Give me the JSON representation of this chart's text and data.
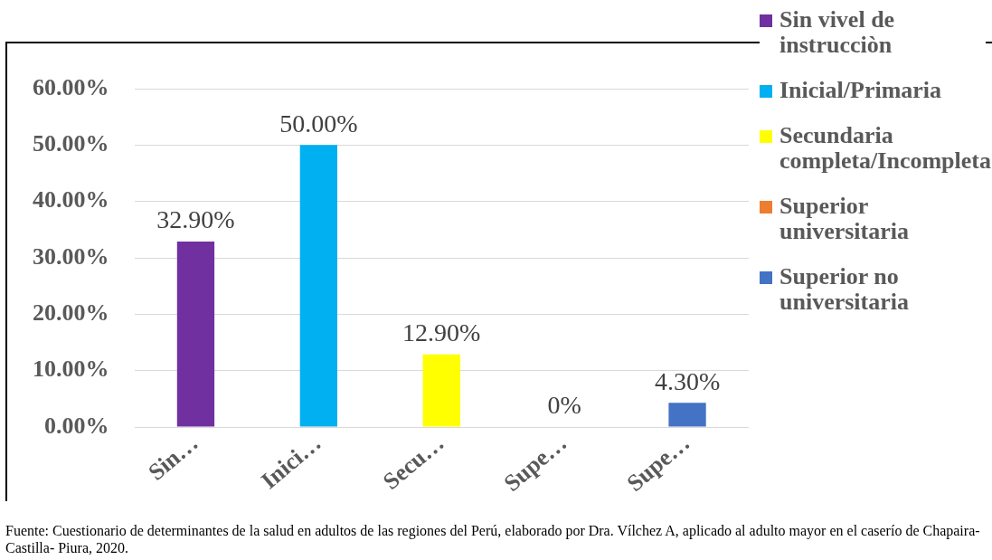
{
  "chart_data": {
    "type": "bar",
    "categories": [
      "Sin…",
      "Inici…",
      "Secu…",
      "Supe…",
      "Supe…"
    ],
    "series": [
      {
        "name": "Sin vivel de instrucciòn",
        "color": "#7030a0",
        "values": [
          32.9,
          null,
          null,
          null,
          null
        ],
        "value_labels": [
          "32.90%",
          null,
          null,
          null,
          null
        ]
      },
      {
        "name": "Inicial/Primaria",
        "color": "#00b0f0",
        "values": [
          null,
          50,
          null,
          null,
          null
        ],
        "value_labels": [
          null,
          "50.00%",
          null,
          null,
          null
        ]
      },
      {
        "name": "Secundaria completa/Incompleta",
        "color": "#ffff00",
        "values": [
          null,
          null,
          12.9,
          null,
          null
        ],
        "value_labels": [
          null,
          null,
          "12.90%",
          null,
          null
        ]
      },
      {
        "name": "Superior universitaria",
        "color": "#ed7d31",
        "values": [
          null,
          null,
          null,
          0,
          null
        ],
        "value_labels": [
          null,
          null,
          null,
          "0%",
          null
        ]
      },
      {
        "name": "Superior no universitaria",
        "color": "#4472c4",
        "values": [
          null,
          null,
          null,
          null,
          4.3
        ],
        "value_labels": [
          null,
          null,
          null,
          null,
          "4.30%"
        ]
      }
    ],
    "ylim": [
      0,
      60
    ],
    "yticks": [
      {
        "value": 0,
        "label": "0.00%"
      },
      {
        "value": 10,
        "label": "10.00%"
      },
      {
        "value": 20,
        "label": "20.00%"
      },
      {
        "value": 30,
        "label": "30.00%"
      },
      {
        "value": 40,
        "label": "40.00%"
      },
      {
        "value": 50,
        "label": "50.00%"
      },
      {
        "value": 60,
        "label": "60.00%"
      }
    ],
    "grid": "y",
    "legend": "right",
    "annotations": [
      "Fuente: Cuestionario de determinantes de la salud en adultos de las regiones del Perú, elaborado por Dra. Vílchez A, aplicado al adulto mayor en el caserío de Chapaira- Castilla- Piura, 2020."
    ]
  }
}
